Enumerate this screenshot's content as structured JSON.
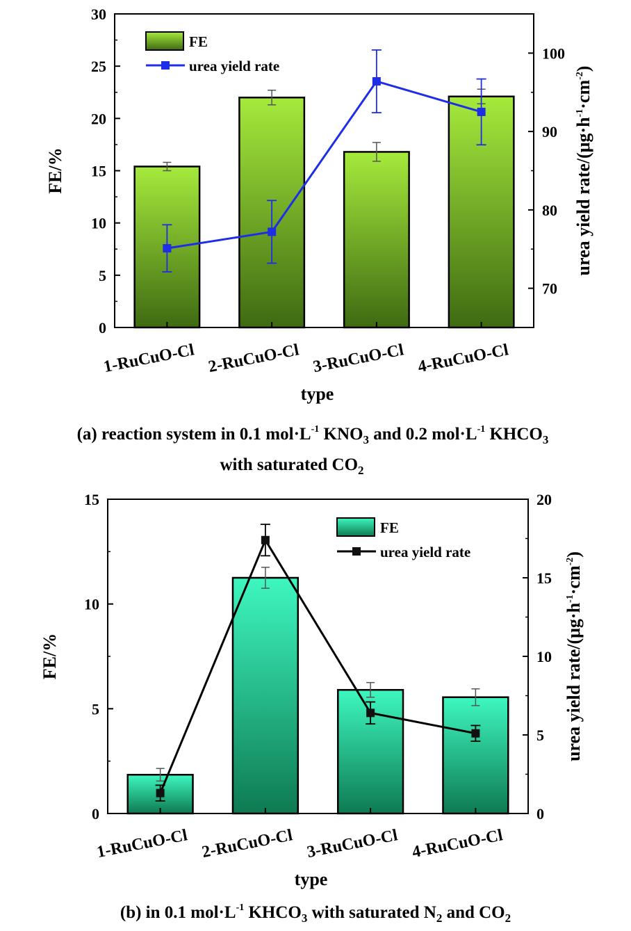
{
  "chart_data": [
    {
      "type": "bar",
      "panel": "a",
      "categories": [
        "1-RuCuO-Cl",
        "2-RuCuO-Cl",
        "3-RuCuO-Cl",
        "4-RuCuO-Cl"
      ],
      "xlabel": "type",
      "ylabel_left": "FE/%",
      "ylabel_right_parts": {
        "main": "urea yield rate/(μg·h",
        "sup1": "-1",
        "mid": "·cm",
        "sup2": "-2",
        "end": ")"
      },
      "ylim_left": [
        0,
        30
      ],
      "yticks_left": [
        0,
        5,
        10,
        15,
        20,
        25,
        30
      ],
      "ylim_right": [
        65,
        105
      ],
      "yticks_right": [
        70,
        80,
        90,
        100
      ],
      "series": [
        {
          "name": "FE",
          "kind": "bar",
          "axis": "left",
          "values": [
            15.4,
            22.0,
            16.8,
            22.1
          ],
          "errors": [
            0.4,
            0.7,
            0.9,
            0.7
          ]
        },
        {
          "name": "urea yield rate",
          "kind": "line",
          "axis": "right",
          "values": [
            75.1,
            77.2,
            96.4,
            92.5
          ],
          "errors": [
            3.0,
            4.0,
            4.0,
            4.2
          ]
        }
      ],
      "legend": [
        "FE",
        "urea yield rate"
      ],
      "legend_position": "top-left",
      "colors": {
        "bar_top": "#a6ea3c",
        "bar_bottom": "#3f6a12",
        "line": "#1e2ee6",
        "marker": "#1e2ee6"
      },
      "caption": {
        "line1_parts": [
          "(a) reaction system in 0.1 mol·L",
          "-1",
          " KNO",
          "3",
          " and 0.2 mol·L",
          "-1",
          " KHCO",
          "3"
        ],
        "line2_parts": [
          "with saturated CO",
          "2"
        ]
      }
    },
    {
      "type": "bar",
      "panel": "b",
      "categories": [
        "1-RuCuO-Cl",
        "2-RuCuO-Cl",
        "3-RuCuO-Cl",
        "4-RuCuO-Cl"
      ],
      "xlabel": "type",
      "ylabel_left": "FE/%",
      "ylabel_right_parts": {
        "main": "urea yield rate/(μg·h",
        "sup1": "-1",
        "mid": "·cm",
        "sup2": "-2",
        "end": ")"
      },
      "ylim_left": [
        0,
        15
      ],
      "yticks_left": [
        0,
        5,
        10,
        15
      ],
      "ylim_right": [
        0,
        20
      ],
      "yticks_right": [
        0,
        5,
        10,
        15,
        20
      ],
      "series": [
        {
          "name": "FE",
          "kind": "bar",
          "axis": "left",
          "values": [
            1.85,
            11.25,
            5.9,
            5.55
          ],
          "errors": [
            0.3,
            0.5,
            0.35,
            0.4
          ]
        },
        {
          "name": "urea yield rate",
          "kind": "line",
          "axis": "right",
          "values": [
            1.3,
            17.4,
            6.4,
            5.1
          ],
          "errors": [
            0.5,
            1.0,
            0.7,
            0.5
          ]
        }
      ],
      "legend": [
        "FE",
        "urea yield rate"
      ],
      "legend_position": "top-right",
      "colors": {
        "bar_top": "#3ef7c0",
        "bar_bottom": "#0e7a52",
        "line": "#000000",
        "marker": "#111111"
      },
      "caption": {
        "line1_parts": [
          "(b) in 0.1 mol·L",
          "-1",
          " KHCO",
          "3",
          " with saturated N",
          "2",
          " and CO",
          "2"
        ]
      }
    }
  ]
}
